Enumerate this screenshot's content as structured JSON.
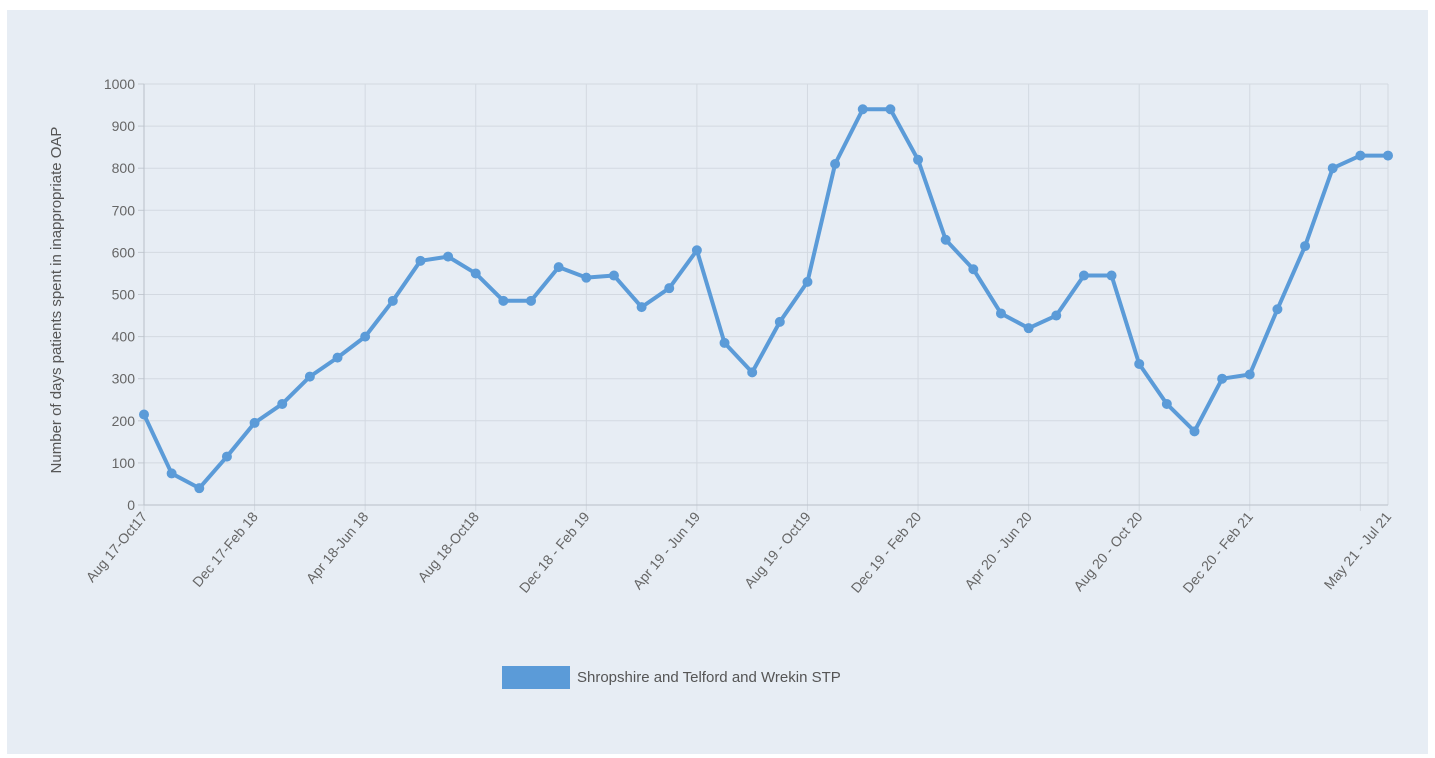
{
  "chart_data": {
    "type": "line",
    "title": "",
    "xlabel": "",
    "ylabel": "Number of days patients spent in inappropriate OAP",
    "ylim": [
      0,
      1000
    ],
    "yticks": [
      0,
      100,
      200,
      300,
      400,
      500,
      600,
      700,
      800,
      900,
      1000
    ],
    "grid": true,
    "legend_position": "bottom",
    "x_tick_labels": [
      "Aug 17-Oct17",
      "Dec 17-Feb 18",
      "Apr 18-Jun 18",
      "Aug 18-Oct18",
      "Dec 18 - Feb 19",
      "Apr 19 - Jun 19",
      "Aug 19 - Oct19",
      "Dec 19 - Feb 20",
      "Apr 20 - Jun 20",
      "Aug 20 - Oct 20",
      "Dec 20 - Feb 21",
      "May 21 - Jul 21"
    ],
    "series": [
      {
        "name": "Shropshire and Telford and Wrekin STP",
        "color": "#5b9bd8",
        "values": [
          215,
          75,
          40,
          115,
          195,
          240,
          305,
          350,
          400,
          485,
          580,
          590,
          550,
          485,
          485,
          565,
          540,
          545,
          470,
          515,
          605,
          385,
          315,
          435,
          530,
          810,
          940,
          940,
          820,
          630,
          560,
          455,
          420,
          450,
          545,
          545,
          335,
          240,
          175,
          300,
          310,
          465,
          615,
          800,
          830,
          830
        ]
      }
    ]
  }
}
